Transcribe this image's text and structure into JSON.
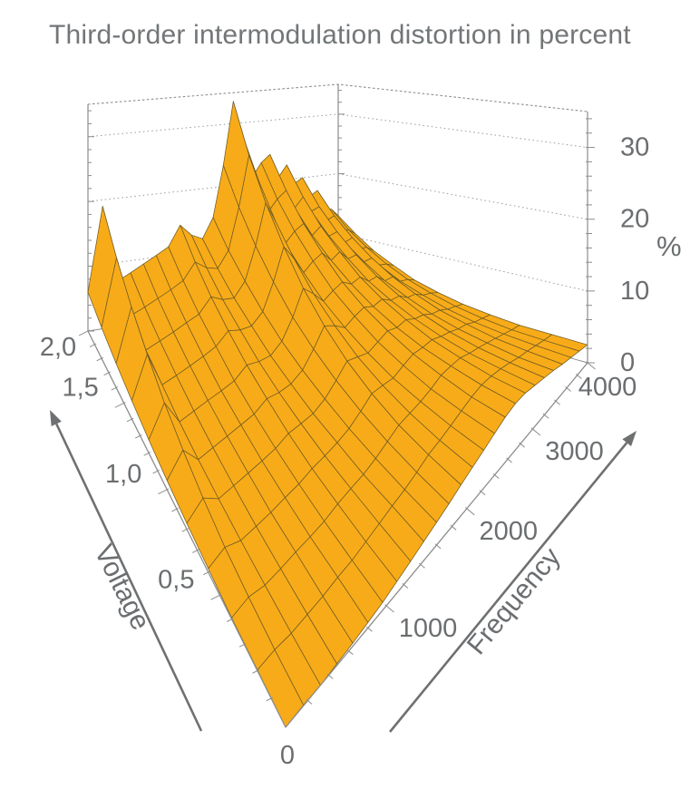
{
  "title": "Third-order intermodulation distortion in percent",
  "colors": {
    "surface_fill": "#F8AB18",
    "surface_edge": "#6E5C24",
    "axis": "#8D8D8D",
    "grid_dotted": "#9A9A9A",
    "tick_label": "#6B6E70",
    "axis_arrow": "#6E7072",
    "title": "#737678",
    "background": "#FFFFFF"
  },
  "chart_data": {
    "type": "surface",
    "title": "Third-order intermodulation distortion in percent",
    "legend": "none",
    "grid": "dotted z-gridlines on back walls at 10, 20, 30",
    "axes": {
      "x": {
        "label": "Frequency",
        "range": [
          0,
          4000
        ],
        "major_ticks": [
          0,
          1000,
          2000,
          3000,
          4000
        ],
        "tick_labels": [
          "0",
          "1000",
          "2000",
          "3000",
          "4000"
        ],
        "minor_step": 200,
        "arrow": true
      },
      "y": {
        "label": "Voltage",
        "range": [
          0,
          2
        ],
        "major_ticks": [
          0.5,
          1.0,
          1.5,
          2.0
        ],
        "tick_labels": [
          "0,5",
          "1,0",
          "1,5",
          "2,0"
        ],
        "minor_step": 0.1,
        "arrow": true
      },
      "z": {
        "label": "%",
        "range": [
          0,
          35
        ],
        "major_ticks": [
          0,
          10,
          20,
          30
        ],
        "tick_labels": [
          "0",
          "10",
          "20",
          "30"
        ],
        "minor_step": 2
      }
    },
    "surface": {
      "f": [
        0,
        160,
        320,
        480,
        640,
        800,
        960,
        1120,
        1280,
        1440,
        1600,
        1760,
        1920,
        2080,
        2240,
        2400,
        2560,
        2720,
        2880,
        3040,
        3200,
        3360,
        3520,
        3680,
        3840,
        4000
      ],
      "v": [
        0,
        0.2,
        0.4,
        0.6,
        0.8,
        1.0,
        1.2,
        1.4,
        1.6,
        1.8,
        2.0
      ],
      "values": [
        [
          0,
          0.1,
          0,
          0.2,
          0.4,
          0.7,
          1,
          1.5,
          2,
          2.5,
          3,
          3.5,
          4.1,
          4.6,
          5.1,
          5.6,
          6.1,
          6.3,
          6.1,
          5.6,
          5.1,
          4.6,
          4,
          3.5,
          3,
          2.5
        ],
        [
          0.1,
          0.3,
          0.1,
          0.3,
          0.5,
          0.9,
          1.1,
          1.6,
          2.1,
          2.6,
          3,
          3.6,
          4.3,
          4.6,
          5,
          5.5,
          5.9,
          6.1,
          5.9,
          5.5,
          5,
          4.4,
          4,
          3.5,
          3,
          2.6
        ],
        [
          0.2,
          0.8,
          0.3,
          0.5,
          0.8,
          1,
          1.3,
          1.9,
          2.3,
          2.6,
          3.2,
          4,
          4.8,
          5,
          5.2,
          5.6,
          6.2,
          6.2,
          6.1,
          5.5,
          5.1,
          4.6,
          4.1,
          3.6,
          3.1,
          2.7
        ],
        [
          0.5,
          1.5,
          0.6,
          0.8,
          1,
          1.4,
          1.7,
          2.3,
          2.6,
          3,
          3.6,
          4.7,
          5.9,
          5.8,
          5.6,
          6.2,
          6.7,
          6.5,
          6.5,
          5.9,
          5.5,
          4.9,
          4.6,
          3.9,
          3.5,
          3.1
        ],
        [
          0.8,
          2.7,
          1,
          1.3,
          1.6,
          1.9,
          2.3,
          3.1,
          3.2,
          3.4,
          4.3,
          5.8,
          7.5,
          7,
          6.5,
          7.1,
          7.7,
          7.2,
          7.4,
          6.6,
          6.3,
          5.5,
          5.2,
          4.5,
          4.1,
          3.6
        ],
        [
          1.3,
          4.2,
          1.5,
          1.9,
          2.3,
          2.7,
          3.1,
          4.2,
          4,
          4.2,
          5.2,
          7.3,
          9.8,
          8.9,
          7.7,
          8.5,
          9,
          8.3,
          8.6,
          7.6,
          7.5,
          6.5,
          6.3,
          5.4,
          5,
          4.4
        ],
        [
          1.9,
          6.1,
          2.2,
          2.7,
          3.2,
          3.6,
          4.1,
          5.5,
          5.1,
          5.1,
          6.4,
          9.2,
          12.8,
          11.2,
          9.3,
          10.2,
          10.8,
          9.8,
          10.2,
          8.9,
          9,
          7.7,
          7.7,
          6.4,
          6.1,
          5.4
        ],
        [
          2.7,
          8.6,
          3.2,
          3.7,
          4.3,
          4.9,
          5.6,
          7.2,
          6.6,
          6.5,
          8,
          11.9,
          16.7,
          14.3,
          11.5,
          12.7,
          13.4,
          11.7,
          12.5,
          10.9,
          11,
          9.4,
          9.5,
          7.9,
          7.6,
          6.9
        ],
        [
          3.6,
          11.4,
          4.2,
          4.9,
          5.6,
          6.4,
          7.1,
          9.2,
          8.2,
          7.9,
          10,
          15,
          21.3,
          17.9,
          14,
          15.5,
          16.3,
          14,
          15.1,
          13.1,
          13.4,
          11.3,
          11.7,
          9.6,
          9.4,
          8.5
        ],
        [
          4.7,
          14.8,
          5.5,
          6.3,
          7.2,
          8.1,
          9.1,
          11.6,
          10.3,
          9.8,
          12.3,
          18.8,
          26.8,
          22.4,
          17.1,
          18.9,
          20,
          16.9,
          18.4,
          15.8,
          16.3,
          13.8,
          14.3,
          11.7,
          11.5,
          10.6
        ],
        [
          6,
          19,
          7,
          8.1,
          9.2,
          10.3,
          11.4,
          14.6,
          12.8,
          12,
          15.2,
          23.4,
          33.6,
          27.8,
          21,
          23.2,
          24.4,
          20.5,
          22.4,
          19.2,
          20,
          16.8,
          17.6,
          14.4,
          14.2,
          13
        ]
      ]
    }
  }
}
